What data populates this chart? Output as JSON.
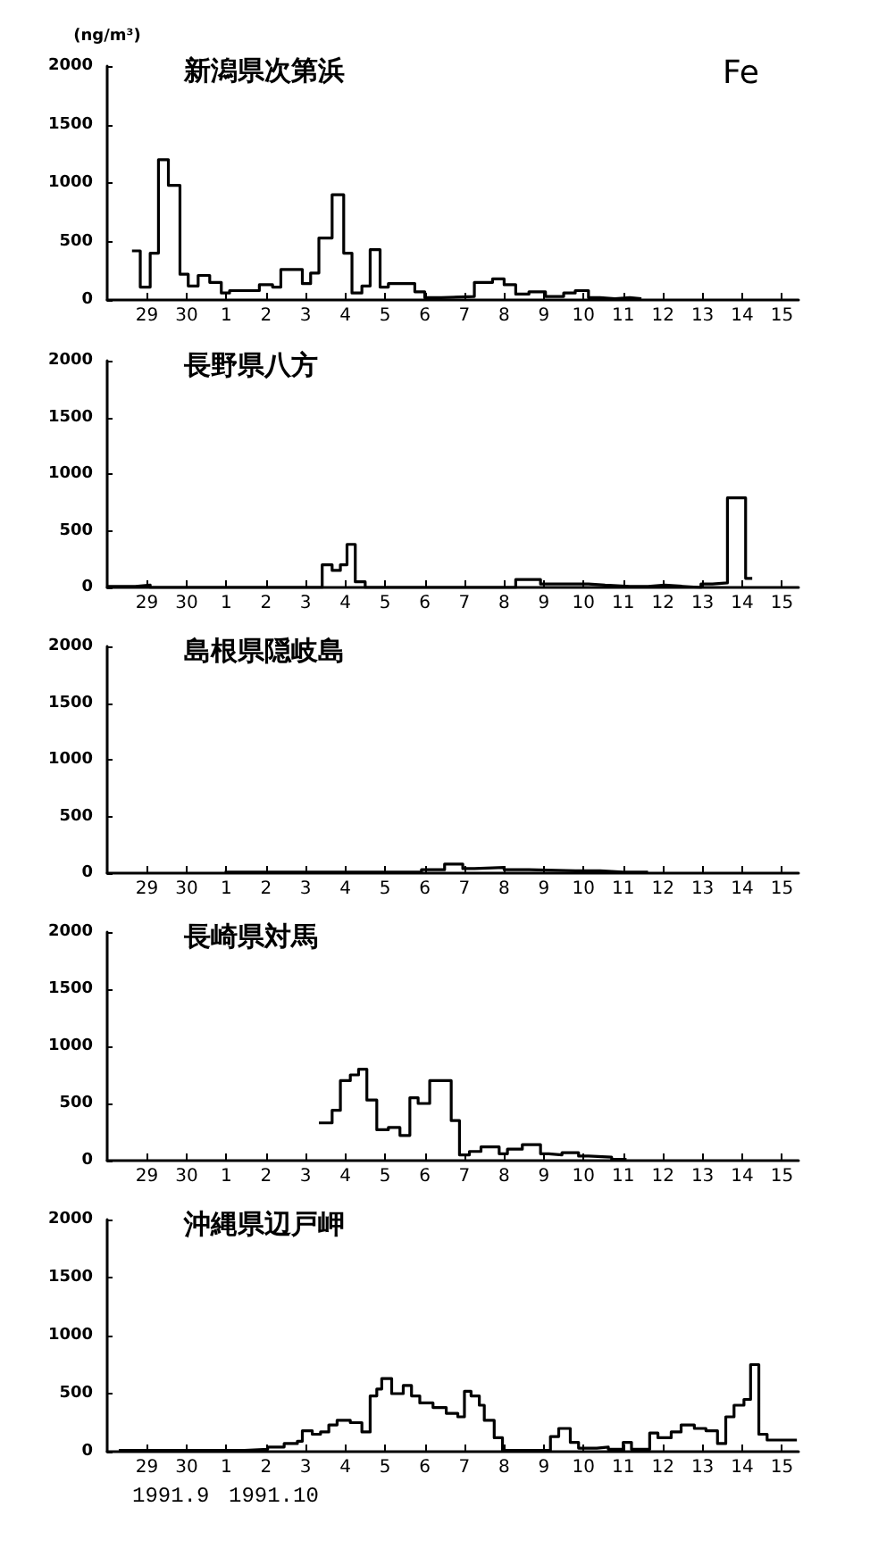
{
  "chart_data": [
    {
      "type": "step",
      "title": "新潟県次第浜",
      "ylabel": "(ng/m³)",
      "annotations": [
        "Fe"
      ],
      "color": "#000000",
      "marker": "none",
      "x": [
        "1991-09-29T03:00",
        "1991-09-29T08:00",
        "1991-09-29T14:00",
        "1991-09-29T19:00",
        "1991-09-30T01:00",
        "1991-09-30T08:00",
        "1991-09-30T13:00",
        "1991-09-30T19:00",
        "1991-10-01T02:00",
        "1991-10-01T09:00",
        "1991-10-01T14:00",
        "1991-10-02T08:00",
        "1991-10-02T16:00",
        "1991-10-02T21:00",
        "1991-10-03T10:00",
        "1991-10-03T15:00",
        "1991-10-03T20:00",
        "1991-10-04T04:00",
        "1991-10-04T11:00",
        "1991-10-04T16:00",
        "1991-10-04T22:00",
        "1991-10-05T03:00",
        "1991-10-05T09:00",
        "1991-10-05T14:00",
        "1991-10-06T06:00",
        "1991-10-06T12:00",
        "1991-10-06T22:00",
        "1991-10-07T18:00",
        "1991-10-08T05:00",
        "1991-10-08T12:00",
        "1991-10-08T19:00",
        "1991-10-09T03:00",
        "1991-10-09T13:00",
        "1991-10-10T00:00",
        "1991-10-10T07:00",
        "1991-10-10T15:00",
        "1991-10-10T22:00",
        "1991-10-11T07:00",
        "1991-10-11T16:00",
        "1991-10-11T23:00"
      ],
      "values": [
        420,
        110,
        400,
        1200,
        980,
        220,
        120,
        210,
        150,
        60,
        80,
        130,
        110,
        260,
        140,
        230,
        530,
        900,
        400,
        60,
        120,
        430,
        110,
        140,
        70,
        20,
        30,
        150,
        180,
        130,
        50,
        70,
        30,
        60,
        80,
        20,
        10,
        20,
        10,
        10
      ],
      "xlim": [
        "1991-09-28T12:00",
        "1991-10-15T22:00"
      ],
      "ylim": [
        0,
        2000
      ],
      "yticks": [
        0,
        500,
        1000,
        1500,
        2000
      ],
      "xticks": [
        {
          "value": "1991-09-29T12:00",
          "label": "29"
        },
        {
          "value": "1991-09-30T12:00",
          "label": "30"
        },
        {
          "value": "1991-10-01T12:00",
          "label": "1"
        },
        {
          "value": "1991-10-02T12:00",
          "label": "2"
        },
        {
          "value": "1991-10-03T12:00",
          "label": "3"
        },
        {
          "value": "1991-10-04T12:00",
          "label": "4"
        },
        {
          "value": "1991-10-05T12:00",
          "label": "5"
        },
        {
          "value": "1991-10-06T12:00",
          "label": "6"
        },
        {
          "value": "1991-10-07T12:00",
          "label": "7"
        },
        {
          "value": "1991-10-08T12:00",
          "label": "8"
        },
        {
          "value": "1991-10-09T12:00",
          "label": "9"
        },
        {
          "value": "1991-10-10T12:00",
          "label": "10"
        },
        {
          "value": "1991-10-11T12:00",
          "label": "11"
        },
        {
          "value": "1991-10-12T12:00",
          "label": "12"
        },
        {
          "value": "1991-10-13T12:00",
          "label": "13"
        },
        {
          "value": "1991-10-14T12:00",
          "label": "14"
        },
        {
          "value": "1991-10-15T12:00",
          "label": "15"
        }
      ]
    },
    {
      "type": "step",
      "title": "長野県八方",
      "color": "#000000",
      "marker": "none",
      "x": [
        "1991-09-28T12:00",
        "1991-09-29T05:00",
        "1991-09-29T14:00",
        "1991-10-03T22:00",
        "1991-10-04T04:00",
        "1991-10-04T09:00",
        "1991-10-04T13:00",
        "1991-10-04T18:00",
        "1991-10-05T00:00",
        "1991-10-08T19:00",
        "1991-10-09T10:00",
        "1991-10-10T15:00",
        "1991-10-11T01:00",
        "1991-10-11T16:00",
        "1991-10-12T03:00",
        "1991-10-12T13:00",
        "1991-10-13T00:00",
        "1991-10-13T11:00",
        "1991-10-13T18:00",
        "1991-10-14T03:00",
        "1991-10-14T14:00",
        "1991-10-14T18:00"
      ],
      "values": [
        10,
        20,
        0,
        200,
        150,
        200,
        380,
        50,
        0,
        70,
        30,
        20,
        10,
        10,
        20,
        10,
        0,
        30,
        40,
        790,
        80,
        80
      ],
      "xlim": [
        "1991-09-28T12:00",
        "1991-10-15T22:00"
      ],
      "ylim": [
        0,
        2000
      ],
      "yticks": [
        0,
        500,
        1000,
        1500,
        2000
      ],
      "xticks": [
        {
          "value": "1991-09-29T12:00",
          "label": "29"
        },
        {
          "value": "1991-09-30T12:00",
          "label": "30"
        },
        {
          "value": "1991-10-01T12:00",
          "label": "1"
        },
        {
          "value": "1991-10-02T12:00",
          "label": "2"
        },
        {
          "value": "1991-10-03T12:00",
          "label": "3"
        },
        {
          "value": "1991-10-04T12:00",
          "label": "4"
        },
        {
          "value": "1991-10-05T12:00",
          "label": "5"
        },
        {
          "value": "1991-10-06T12:00",
          "label": "6"
        },
        {
          "value": "1991-10-07T12:00",
          "label": "7"
        },
        {
          "value": "1991-10-08T12:00",
          "label": "8"
        },
        {
          "value": "1991-10-09T12:00",
          "label": "9"
        },
        {
          "value": "1991-10-10T12:00",
          "label": "10"
        },
        {
          "value": "1991-10-11T12:00",
          "label": "11"
        },
        {
          "value": "1991-10-12T12:00",
          "label": "12"
        },
        {
          "value": "1991-10-13T12:00",
          "label": "13"
        },
        {
          "value": "1991-10-14T12:00",
          "label": "14"
        },
        {
          "value": "1991-10-15T12:00",
          "label": "15"
        }
      ]
    },
    {
      "type": "step",
      "title": "島根県隠岐島",
      "color": "#000000",
      "marker": "none",
      "x": [
        "1991-10-01T11:00",
        "1991-10-03T17:00",
        "1991-10-06T10:00",
        "1991-10-07T00:00",
        "1991-10-07T11:00",
        "1991-10-07T18:00",
        "1991-10-08T12:00",
        "1991-10-09T03:00",
        "1991-10-10T07:00",
        "1991-10-10T22:00",
        "1991-10-11T12:00",
        "1991-10-12T03:00"
      ],
      "values": [
        10,
        10,
        30,
        80,
        40,
        50,
        30,
        20,
        20,
        10,
        10,
        10
      ],
      "xlim": [
        "1991-09-28T12:00",
        "1991-10-15T22:00"
      ],
      "ylim": [
        0,
        2000
      ],
      "yticks": [
        0,
        500,
        1000,
        1500,
        2000
      ],
      "xticks": [
        {
          "value": "1991-09-29T12:00",
          "label": "29"
        },
        {
          "value": "1991-09-30T12:00",
          "label": "30"
        },
        {
          "value": "1991-10-01T12:00",
          "label": "1"
        },
        {
          "value": "1991-10-02T12:00",
          "label": "2"
        },
        {
          "value": "1991-10-03T12:00",
          "label": "3"
        },
        {
          "value": "1991-10-04T12:00",
          "label": "4"
        },
        {
          "value": "1991-10-05T12:00",
          "label": "5"
        },
        {
          "value": "1991-10-06T12:00",
          "label": "6"
        },
        {
          "value": "1991-10-07T12:00",
          "label": "7"
        },
        {
          "value": "1991-10-08T12:00",
          "label": "8"
        },
        {
          "value": "1991-10-09T12:00",
          "label": "9"
        },
        {
          "value": "1991-10-10T12:00",
          "label": "10"
        },
        {
          "value": "1991-10-11T12:00",
          "label": "11"
        },
        {
          "value": "1991-10-12T12:00",
          "label": "12"
        },
        {
          "value": "1991-10-13T12:00",
          "label": "13"
        },
        {
          "value": "1991-10-14T12:00",
          "label": "14"
        },
        {
          "value": "1991-10-15T12:00",
          "label": "15"
        }
      ]
    },
    {
      "type": "step",
      "title": "長崎県対馬",
      "color": "#000000",
      "marker": "none",
      "x": [
        "1991-10-03T20:00",
        "1991-10-04T04:00",
        "1991-10-04T09:00",
        "1991-10-04T15:00",
        "1991-10-04T20:00",
        "1991-10-05T01:00",
        "1991-10-05T07:00",
        "1991-10-05T14:00",
        "1991-10-05T21:00",
        "1991-10-06T03:00",
        "1991-10-06T08:00",
        "1991-10-06T15:00",
        "1991-10-07T04:00",
        "1991-10-07T09:00",
        "1991-10-07T15:00",
        "1991-10-07T22:00",
        "1991-10-08T09:00",
        "1991-10-08T14:00",
        "1991-10-08T23:00",
        "1991-10-09T10:00",
        "1991-10-09T15:00",
        "1991-10-09T23:00",
        "1991-10-10T09:00",
        "1991-10-10T15:00",
        "1991-10-11T05:00",
        "1991-10-11T14:00"
      ],
      "values": [
        330,
        440,
        700,
        750,
        800,
        530,
        270,
        290,
        220,
        550,
        500,
        700,
        350,
        50,
        80,
        120,
        60,
        100,
        140,
        60,
        50,
        70,
        40,
        30,
        10,
        10
      ],
      "xlim": [
        "1991-09-28T12:00",
        "1991-10-15T22:00"
      ],
      "ylim": [
        0,
        2000
      ],
      "yticks": [
        0,
        500,
        1000,
        1500,
        2000
      ],
      "xticks": [
        {
          "value": "1991-09-29T12:00",
          "label": "29"
        },
        {
          "value": "1991-09-30T12:00",
          "label": "30"
        },
        {
          "value": "1991-10-01T12:00",
          "label": "1"
        },
        {
          "value": "1991-10-02T12:00",
          "label": "2"
        },
        {
          "value": "1991-10-03T12:00",
          "label": "3"
        },
        {
          "value": "1991-10-04T12:00",
          "label": "4"
        },
        {
          "value": "1991-10-05T12:00",
          "label": "5"
        },
        {
          "value": "1991-10-06T12:00",
          "label": "6"
        },
        {
          "value": "1991-10-07T12:00",
          "label": "7"
        },
        {
          "value": "1991-10-08T12:00",
          "label": "8"
        },
        {
          "value": "1991-10-09T12:00",
          "label": "9"
        },
        {
          "value": "1991-10-10T12:00",
          "label": "10"
        },
        {
          "value": "1991-10-11T12:00",
          "label": "11"
        },
        {
          "value": "1991-10-12T12:00",
          "label": "12"
        },
        {
          "value": "1991-10-13T12:00",
          "label": "13"
        },
        {
          "value": "1991-10-14T12:00",
          "label": "14"
        },
        {
          "value": "1991-10-15T12:00",
          "label": "15"
        }
      ]
    },
    {
      "type": "step",
      "title": "沖縄県辺戸岬",
      "annotations": [
        "1991.9",
        "1991.10"
      ],
      "color": "#000000",
      "marker": "none",
      "x": [
        "1991-09-28T19:00",
        "1991-10-01T05:00",
        "1991-10-01T23:00",
        "1991-10-02T13:00",
        "1991-10-02T23:00",
        "1991-10-03T07:00",
        "1991-10-03T10:00",
        "1991-10-03T16:00",
        "1991-10-03T21:00",
        "1991-10-04T02:00",
        "1991-10-04T07:00",
        "1991-10-04T15:00",
        "1991-10-04T22:00",
        "1991-10-05T03:00",
        "1991-10-05T07:00",
        "1991-10-05T10:00",
        "1991-10-05T16:00",
        "1991-10-05T23:00",
        "1991-10-06T04:00",
        "1991-10-06T09:00",
        "1991-10-06T17:00",
        "1991-10-07T01:00",
        "1991-10-07T08:00",
        "1991-10-07T12:00",
        "1991-10-07T16:00",
        "1991-10-07T21:00",
        "1991-10-08T00:00",
        "1991-10-08T06:00",
        "1991-10-08T11:00",
        "1991-10-08T22:00",
        "1991-10-09T16:00",
        "1991-10-09T21:00",
        "1991-10-10T04:00",
        "1991-10-10T09:00",
        "1991-10-10T20:00",
        "1991-10-11T03:00",
        "1991-10-11T12:00",
        "1991-10-11T17:00",
        "1991-10-12T04:00",
        "1991-10-12T09:00",
        "1991-10-12T17:00",
        "1991-10-12T23:00",
        "1991-10-13T07:00",
        "1991-10-13T14:00",
        "1991-10-13T21:00",
        "1991-10-14T02:00",
        "1991-10-14T07:00",
        "1991-10-14T13:00",
        "1991-10-14T17:00",
        "1991-10-14T22:00",
        "1991-10-15T03:00",
        "1991-10-15T21:00"
      ],
      "values": [
        10,
        10,
        20,
        40,
        70,
        90,
        180,
        150,
        170,
        230,
        270,
        250,
        170,
        480,
        540,
        630,
        500,
        570,
        480,
        420,
        380,
        330,
        300,
        520,
        480,
        400,
        270,
        120,
        10,
        10,
        130,
        200,
        80,
        30,
        40,
        20,
        80,
        20,
        160,
        120,
        170,
        230,
        200,
        180,
        70,
        300,
        400,
        450,
        750,
        150,
        100,
        100
      ],
      "xlim": [
        "1991-09-28T12:00",
        "1991-10-15T22:00"
      ],
      "ylim": [
        0,
        2000
      ],
      "yticks": [
        0,
        500,
        1000,
        1500,
        2000
      ],
      "xticks": [
        {
          "value": "1991-09-29T12:00",
          "label": "29"
        },
        {
          "value": "1991-09-30T12:00",
          "label": "30"
        },
        {
          "value": "1991-10-01T12:00",
          "label": "1"
        },
        {
          "value": "1991-10-02T12:00",
          "label": "2"
        },
        {
          "value": "1991-10-03T12:00",
          "label": "3"
        },
        {
          "value": "1991-10-04T12:00",
          "label": "4"
        },
        {
          "value": "1991-10-05T12:00",
          "label": "5"
        },
        {
          "value": "1991-10-06T12:00",
          "label": "6"
        },
        {
          "value": "1991-10-07T12:00",
          "label": "7"
        },
        {
          "value": "1991-10-08T12:00",
          "label": "8"
        },
        {
          "value": "1991-10-09T12:00",
          "label": "9"
        },
        {
          "value": "1991-10-10T12:00",
          "label": "10"
        },
        {
          "value": "1991-10-11T12:00",
          "label": "11"
        },
        {
          "value": "1991-10-12T12:00",
          "label": "12"
        },
        {
          "value": "1991-10-13T12:00",
          "label": "13"
        },
        {
          "value": "1991-10-14T12:00",
          "label": "14"
        },
        {
          "value": "1991-10-15T12:00",
          "label": "15"
        }
      ]
    }
  ]
}
